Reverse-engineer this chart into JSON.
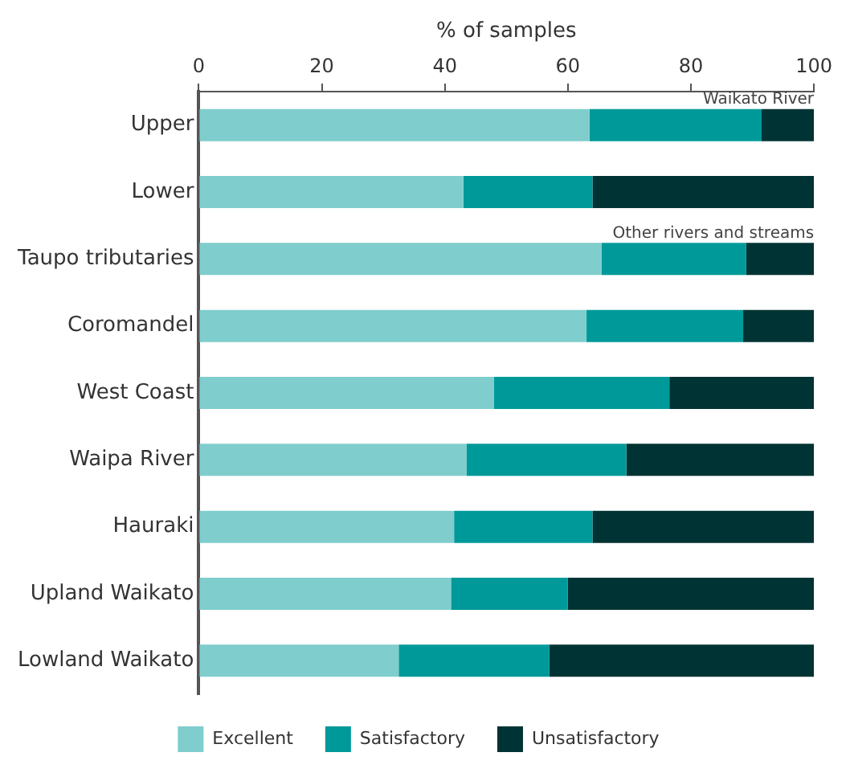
{
  "chart_data": {
    "type": "bar",
    "orientation": "horizontal",
    "stacked": true,
    "xlabel": "% of samples",
    "categories": [
      "Upper",
      "Lower",
      "Taupo tributaries",
      "Coromandel",
      "West Coast",
      "Waipa River",
      "Hauraki",
      "Upland Waikato",
      "Lowland Waikato"
    ],
    "series": [
      {
        "name": "Excellent",
        "color": "#7fcdcd",
        "values": [
          63.5,
          43,
          65.5,
          63,
          48,
          43.5,
          41.5,
          41,
          32.5
        ]
      },
      {
        "name": "Satisfactory",
        "color": "#009999",
        "values": [
          28,
          21,
          23.5,
          25.5,
          28.5,
          26,
          22.5,
          19,
          24.5
        ]
      },
      {
        "name": "Unsatisfactory",
        "color": "#003333",
        "values": [
          8.5,
          36,
          11,
          11.5,
          23.5,
          30.5,
          36,
          40,
          43
        ]
      }
    ],
    "xlim": [
      0,
      100
    ],
    "xticks": [
      0,
      20,
      40,
      60,
      80,
      100
    ],
    "grid": false,
    "legend": "bottom",
    "annotations": [
      {
        "text": "Waikato River",
        "x": 100,
        "y": "Upper"
      },
      {
        "text": "Other rivers and streams",
        "x": 100,
        "y": "Taupo tributaries"
      }
    ]
  }
}
